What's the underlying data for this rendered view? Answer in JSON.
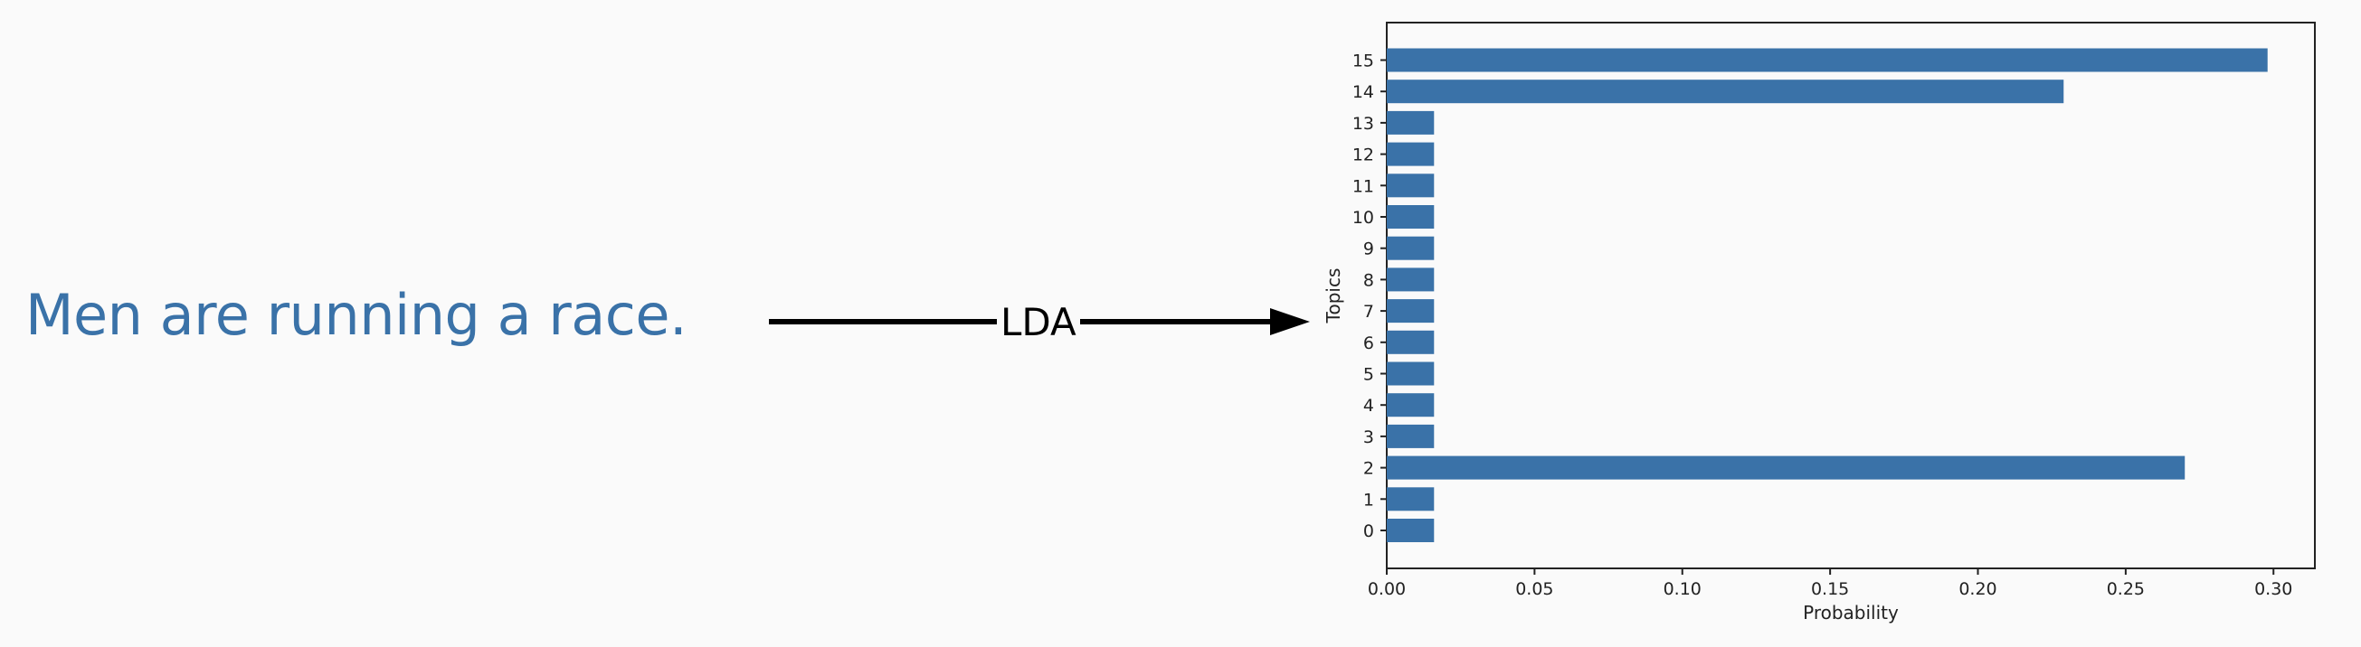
{
  "sentence": "Men are running a race.",
  "method_label": "LDA",
  "colors": {
    "sentence": "#3a72a8",
    "bar": "#3a72a8",
    "arrow": "#000000"
  },
  "chart_data": {
    "type": "bar",
    "orientation": "horizontal",
    "categories": [
      "0",
      "1",
      "2",
      "3",
      "4",
      "5",
      "6",
      "7",
      "8",
      "9",
      "10",
      "11",
      "12",
      "13",
      "14",
      "15"
    ],
    "values": [
      0.016,
      0.016,
      0.27,
      0.016,
      0.016,
      0.016,
      0.016,
      0.016,
      0.016,
      0.016,
      0.016,
      0.016,
      0.016,
      0.016,
      0.229,
      0.298
    ],
    "xlabel": "Probability",
    "ylabel": "Topics",
    "xlim": [
      0,
      0.314
    ],
    "xticks": [
      "0.00",
      "0.05",
      "0.10",
      "0.15",
      "0.20",
      "0.25",
      "0.30"
    ],
    "grid": false
  }
}
